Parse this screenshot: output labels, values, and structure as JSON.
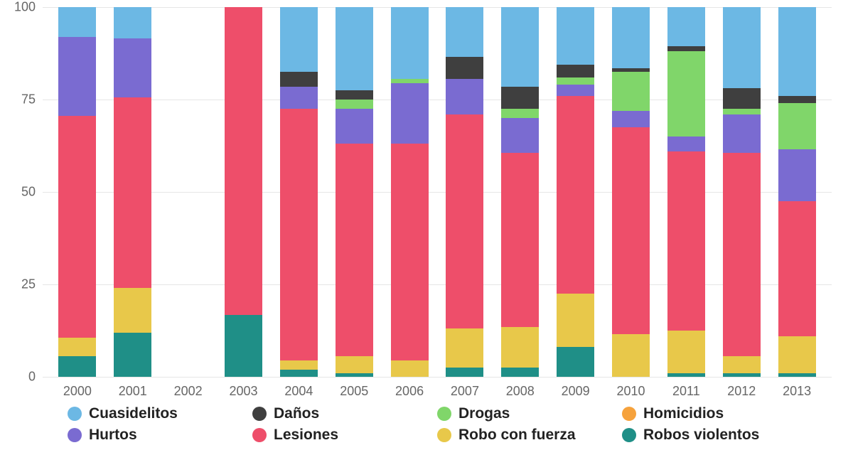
{
  "chart": {
    "type": "stacked-bar",
    "ylim": [
      0,
      100
    ],
    "ytick_step": 25,
    "grid_color": "#e6e6e6",
    "axis_color": "#e6e6e6",
    "background_color": "#ffffff",
    "bar_width_ratio": 0.68,
    "label_fontsize": 18,
    "legend_fontsize": 21,
    "legend_fontweight": 700,
    "categories": [
      "2000",
      "2001",
      "2002",
      "2003",
      "2004",
      "2005",
      "2006",
      "2007",
      "2008",
      "2009",
      "2010",
      "2011",
      "2012",
      "2013"
    ],
    "series": [
      {
        "key": "cuasidelitos",
        "label": "Cuasidelitos",
        "color": "#6cb8e4"
      },
      {
        "key": "danos",
        "label": "Daños",
        "color": "#3f3f3f"
      },
      {
        "key": "drogas",
        "label": "Drogas",
        "color": "#80d66a"
      },
      {
        "key": "homicidios",
        "label": "Homicidios",
        "color": "#f6a23c"
      },
      {
        "key": "hurtos",
        "label": "Hurtos",
        "color": "#7a6bd1"
      },
      {
        "key": "lesiones",
        "label": "Lesiones",
        "color": "#ee4e6a"
      },
      {
        "key": "robo_con_fuerza",
        "label": "Robo con fuerza",
        "color": "#e8c84a"
      },
      {
        "key": "robos_violentos",
        "label": "Robos violentos",
        "color": "#1f8f87"
      }
    ],
    "stack_order": [
      "robos_violentos",
      "robo_con_fuerza",
      "lesiones",
      "hurtos",
      "drogas",
      "danos",
      "cuasidelitos",
      "homicidios"
    ],
    "data": {
      "2000": {
        "robos_violentos": 5.5,
        "robo_con_fuerza": 5.0,
        "lesiones": 60.0,
        "hurtos": 21.5,
        "drogas": 0,
        "danos": 0,
        "cuasidelitos": 8.0,
        "homicidios": 0
      },
      "2001": {
        "robos_violentos": 12.0,
        "robo_con_fuerza": 12.0,
        "lesiones": 51.5,
        "hurtos": 16.0,
        "drogas": 0,
        "danos": 0,
        "cuasidelitos": 8.5,
        "homicidios": 0
      },
      "2002": {
        "robos_violentos": 0,
        "robo_con_fuerza": 0,
        "lesiones": 0,
        "hurtos": 0,
        "drogas": 0,
        "danos": 0,
        "cuasidelitos": 0,
        "homicidios": 0
      },
      "2003": {
        "robos_violentos": 16.7,
        "robo_con_fuerza": 0,
        "lesiones": 83.3,
        "hurtos": 0,
        "drogas": 0,
        "danos": 0,
        "cuasidelitos": 0,
        "homicidios": 0
      },
      "2004": {
        "robos_violentos": 2.0,
        "robo_con_fuerza": 2.5,
        "lesiones": 68.0,
        "hurtos": 6.0,
        "drogas": 0,
        "danos": 4.0,
        "cuasidelitos": 17.5,
        "homicidios": 0
      },
      "2005": {
        "robos_violentos": 1.0,
        "robo_con_fuerza": 4.5,
        "lesiones": 57.5,
        "hurtos": 9.5,
        "drogas": 2.5,
        "danos": 2.5,
        "cuasidelitos": 22.5,
        "homicidios": 0
      },
      "2006": {
        "robos_violentos": 0,
        "robo_con_fuerza": 4.5,
        "lesiones": 58.5,
        "hurtos": 16.5,
        "drogas": 1.0,
        "danos": 0,
        "cuasidelitos": 19.5,
        "homicidios": 0
      },
      "2007": {
        "robos_violentos": 2.5,
        "robo_con_fuerza": 10.5,
        "lesiones": 58.0,
        "hurtos": 9.5,
        "drogas": 0,
        "danos": 6.0,
        "cuasidelitos": 13.5,
        "homicidios": 0
      },
      "2008": {
        "robos_violentos": 2.5,
        "robo_con_fuerza": 11.0,
        "lesiones": 47.0,
        "hurtos": 9.5,
        "drogas": 2.5,
        "danos": 6.0,
        "cuasidelitos": 21.5,
        "homicidios": 0
      },
      "2009": {
        "robos_violentos": 8.0,
        "robo_con_fuerza": 14.5,
        "lesiones": 53.5,
        "hurtos": 3.0,
        "drogas": 2.0,
        "danos": 3.5,
        "cuasidelitos": 15.5,
        "homicidios": 0
      },
      "2010": {
        "robos_violentos": 0,
        "robo_con_fuerza": 11.5,
        "lesiones": 56.0,
        "hurtos": 4.5,
        "drogas": 10.5,
        "danos": 1.0,
        "cuasidelitos": 16.5,
        "homicidios": 0
      },
      "2011": {
        "robos_violentos": 1.0,
        "robo_con_fuerza": 11.5,
        "lesiones": 48.5,
        "hurtos": 4.0,
        "drogas": 23.0,
        "danos": 1.5,
        "cuasidelitos": 10.5,
        "homicidios": 0
      },
      "2012": {
        "robos_violentos": 1.0,
        "robo_con_fuerza": 4.5,
        "lesiones": 55.0,
        "hurtos": 10.5,
        "drogas": 1.5,
        "danos": 5.5,
        "cuasidelitos": 22.0,
        "homicidios": 0
      },
      "2013": {
        "robos_violentos": 1.0,
        "robo_con_fuerza": 10.0,
        "lesiones": 36.5,
        "hurtos": 14.0,
        "drogas": 12.5,
        "danos": 2.0,
        "cuasidelitos": 24.0,
        "homicidios": 0
      }
    }
  }
}
